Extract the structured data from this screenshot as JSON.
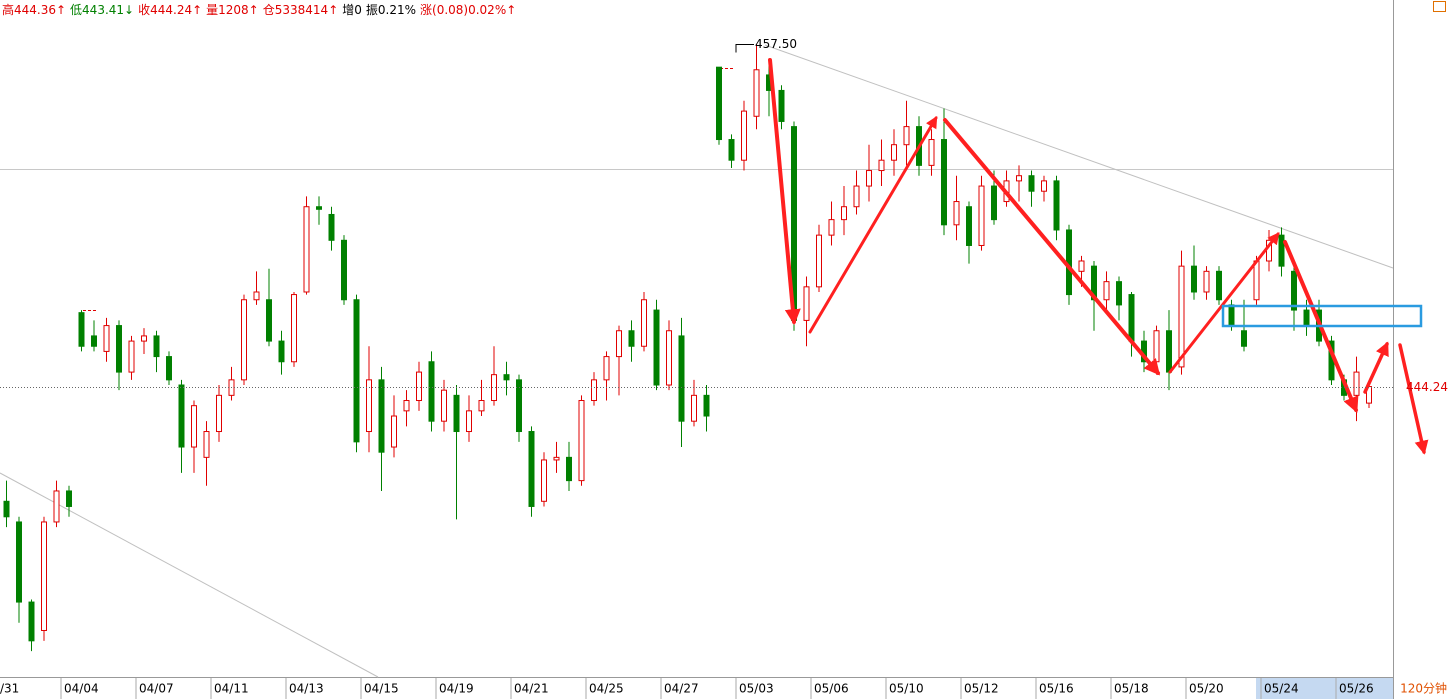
{
  "header": {
    "items": [
      {
        "text": "高444.36↑",
        "color": "#e00000"
      },
      {
        "text": "低443.41↓",
        "color": "#008000"
      },
      {
        "text": "收444.24↑",
        "color": "#e00000"
      },
      {
        "text": "量1208↑",
        "color": "#e00000"
      },
      {
        "text": "仓5338414↑",
        "color": "#e00000"
      },
      {
        "text": "增0",
        "color": "#000000"
      },
      {
        "text": "振0.21%",
        "color": "#000000"
      },
      {
        "text": "涨(0.08)0.02%↑",
        "color": "#e00000"
      }
    ]
  },
  "chart_data": {
    "type": "candlestick",
    "categories": [
      "/31",
      null,
      null,
      null,
      null,
      null,
      "04/04",
      null,
      null,
      null,
      null,
      null,
      "04/07",
      null,
      null,
      null,
      null,
      null,
      "04/11",
      null,
      null,
      null,
      null,
      null,
      "04/13",
      null,
      null,
      null,
      null,
      null,
      "04/15",
      null,
      null,
      null,
      null,
      null,
      "04/19",
      null,
      null,
      null,
      null,
      null,
      "04/21",
      null,
      null,
      null,
      null,
      null,
      "04/25",
      null,
      null,
      null,
      null,
      null,
      "04/27",
      null,
      null,
      null,
      null,
      null,
      "05/03",
      null,
      null,
      null,
      null,
      null,
      "05/06",
      null,
      null,
      null,
      null,
      null,
      "05/10",
      null,
      null,
      null,
      null,
      null,
      "05/12",
      null,
      null,
      null,
      null,
      null,
      "05/16",
      null,
      null,
      null,
      null,
      null,
      "05/18",
      null,
      null,
      null,
      null,
      null,
      "05/20",
      null,
      null,
      null,
      null,
      null,
      "05/24",
      null,
      null,
      null,
      null,
      null,
      "05/26",
      null
    ],
    "open": [
      439.8,
      439.0,
      435.9,
      434.8,
      439.0,
      440.2,
      447.1,
      446.2,
      445.6,
      446.6,
      444.8,
      446.0,
      446.2,
      445.4,
      444.3,
      441.9,
      441.5,
      442.5,
      443.9,
      444.5,
      447.6,
      447.6,
      446.0,
      445.2,
      447.9,
      451.2,
      450.9,
      449.9,
      447.6,
      442.5,
      444.5,
      441.9,
      443.3,
      443.7,
      445.2,
      442.9,
      443.9,
      442.5,
      443.3,
      443.7,
      444.7,
      444.5,
      442.5,
      439.8,
      441.4,
      441.5,
      440.6,
      443.7,
      444.5,
      445.4,
      446.4,
      445.8,
      447.2,
      444.3,
      446.2,
      442.9,
      443.9,
      456.6,
      453.8,
      453.0,
      454.7,
      456.3,
      455.7,
      454.3,
      446.8,
      448.1,
      450.1,
      450.7,
      451.2,
      452.0,
      452.6,
      453.0,
      453.6,
      454.3,
      452.8,
      453.8,
      450.5,
      451.2,
      449.7,
      452.0,
      451.4,
      452.2,
      452.4,
      451.8,
      452.2,
      450.3,
      448.7,
      448.9,
      447.6,
      448.3,
      447.8,
      446.0,
      445.2,
      446.4,
      445.0,
      448.9,
      447.9,
      448.7,
      447.4,
      446.4,
      447.6,
      449.1,
      450.1,
      448.7,
      447.2,
      447.2,
      446.0,
      444.5,
      443.9,
      443.6
    ],
    "high": [
      440.6,
      439.2,
      436.0,
      439.2,
      440.6,
      440.4,
      447.2,
      446.8,
      446.9,
      446.8,
      446.2,
      446.5,
      446.4,
      445.6,
      444.5,
      443.7,
      442.9,
      444.3,
      445.0,
      447.8,
      448.7,
      448.8,
      446.4,
      447.9,
      451.6,
      451.6,
      451.2,
      450.1,
      447.8,
      445.8,
      445.0,
      443.9,
      444.1,
      445.2,
      445.6,
      444.5,
      444.3,
      443.9,
      444.5,
      445.8,
      445.2,
      444.7,
      442.7,
      441.7,
      442.1,
      442.1,
      443.9,
      444.8,
      445.6,
      446.6,
      446.8,
      447.9,
      447.6,
      446.8,
      446.9,
      444.5,
      444.3,
      456.6,
      454.0,
      455.3,
      457.5,
      456.9,
      455.9,
      454.5,
      448.5,
      450.5,
      451.4,
      452.0,
      452.6,
      453.6,
      453.8,
      454.2,
      455.3,
      454.7,
      454.2,
      455.0,
      452.4,
      451.4,
      452.4,
      452.6,
      452.6,
      452.8,
      452.6,
      452.4,
      452.4,
      450.5,
      449.3,
      449.1,
      448.7,
      448.5,
      447.9,
      446.4,
      446.6,
      447.2,
      449.5,
      449.7,
      448.9,
      448.9,
      447.6,
      447.6,
      449.3,
      450.3,
      450.4,
      448.9,
      447.6,
      447.6,
      446.2,
      444.7,
      445.4,
      444.36
    ],
    "low": [
      438.8,
      435.1,
      434.0,
      434.4,
      438.8,
      439.2,
      445.6,
      445.6,
      445.2,
      444.1,
      444.5,
      445.5,
      444.8,
      444.3,
      440.9,
      440.9,
      440.4,
      442.1,
      443.7,
      444.3,
      447.4,
      445.8,
      444.7,
      445.0,
      447.8,
      450.5,
      449.5,
      447.4,
      441.7,
      441.7,
      440.2,
      441.5,
      442.7,
      443.3,
      442.5,
      442.5,
      439.1,
      442.1,
      443.1,
      443.5,
      443.9,
      442.1,
      439.2,
      439.6,
      440.9,
      440.2,
      440.4,
      443.5,
      443.7,
      443.9,
      445.2,
      445.6,
      444.1,
      444.1,
      441.9,
      442.7,
      442.5,
      453.6,
      452.7,
      452.6,
      454.2,
      454.7,
      454.2,
      446.4,
      445.8,
      447.9,
      449.7,
      450.1,
      450.9,
      451.4,
      452.0,
      452.4,
      452.8,
      452.4,
      452.4,
      450.1,
      449.9,
      449.0,
      449.5,
      450.5,
      451.2,
      451.4,
      451.2,
      451.4,
      449.9,
      447.4,
      448.1,
      446.4,
      447.2,
      446.8,
      445.4,
      444.8,
      444.7,
      444.1,
      444.7,
      447.6,
      447.6,
      447.4,
      446.4,
      445.6,
      447.4,
      448.7,
      448.5,
      446.4,
      446.2,
      445.8,
      444.3,
      443.7,
      442.9,
      443.41
    ],
    "close": [
      439.2,
      435.9,
      434.4,
      439.0,
      440.2,
      439.6,
      445.8,
      445.8,
      446.6,
      444.8,
      446.0,
      446.2,
      445.4,
      444.5,
      441.9,
      443.5,
      442.5,
      443.9,
      444.5,
      447.6,
      447.9,
      446.0,
      445.2,
      447.8,
      451.2,
      451.1,
      449.9,
      447.6,
      442.1,
      444.5,
      441.7,
      443.1,
      443.7,
      444.8,
      442.9,
      444.1,
      442.5,
      443.3,
      443.7,
      444.7,
      444.5,
      442.5,
      439.6,
      441.4,
      441.5,
      440.6,
      443.7,
      444.5,
      445.4,
      446.4,
      445.8,
      447.6,
      444.3,
      446.4,
      442.9,
      443.9,
      443.1,
      453.8,
      453.0,
      454.9,
      456.5,
      455.7,
      454.5,
      446.8,
      448.1,
      450.1,
      450.7,
      451.2,
      452.0,
      452.6,
      453.0,
      453.6,
      454.3,
      452.8,
      453.8,
      450.5,
      451.4,
      449.7,
      452.0,
      450.7,
      452.2,
      452.4,
      451.8,
      452.2,
      450.3,
      447.8,
      449.1,
      447.6,
      448.3,
      447.4,
      446.0,
      445.2,
      446.4,
      444.8,
      448.9,
      447.9,
      448.7,
      447.6,
      446.6,
      445.8,
      449.1,
      449.9,
      448.9,
      447.2,
      446.6,
      446.0,
      444.5,
      443.9,
      444.8,
      444.24
    ],
    "ylim": [
      433.0,
      459.2
    ],
    "up_color": "#e00000",
    "down_color": "#008000",
    "last_price": 444.24,
    "high_marker": {
      "value": 457.5,
      "label": "457.50"
    },
    "period": "120分钟"
  }
}
